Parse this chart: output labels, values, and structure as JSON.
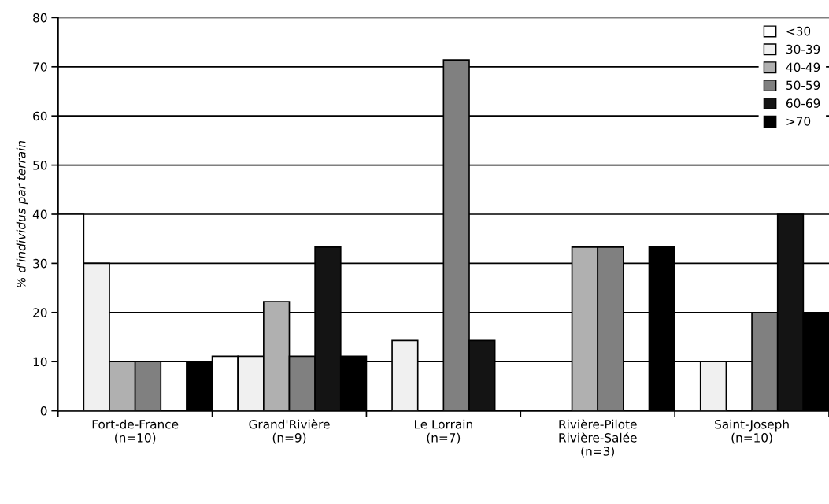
{
  "chart_data": {
    "type": "bar",
    "ylabel": "% d'individus par terrain",
    "categories": [
      "Fort-de-France\n(n=10)",
      "Grand'Rivière\n(n=9)",
      "Le Lorrain\n(n=7)",
      "Rivière-Pilote\nRivière-Salée\n(n=3)",
      "Saint-Joseph\n(n=10)"
    ],
    "series": [
      {
        "name": "<30",
        "color": "#ffffff",
        "values": [
          40,
          11.1,
          0,
          0,
          10
        ]
      },
      {
        "name": "30-39",
        "color": "#f0f0f0",
        "values": [
          30,
          11.1,
          14.3,
          0,
          10
        ]
      },
      {
        "name": "40-49",
        "color": "#b0b0b0",
        "values": [
          10,
          22.2,
          0,
          33.3,
          0
        ]
      },
      {
        "name": "50-59",
        "color": "#808080",
        "values": [
          10,
          11.1,
          71.4,
          33.3,
          20
        ]
      },
      {
        "name": "60-69",
        "color": "#141414",
        "values": [
          0,
          33.3,
          14.3,
          0,
          40
        ]
      },
      {
        "name": ">70",
        "color": "#000000",
        "values": [
          10,
          11.1,
          0,
          33.3,
          20
        ]
      }
    ],
    "ylim": [
      0,
      80
    ],
    "yticks": [
      0,
      10,
      20,
      30,
      40,
      50,
      60,
      70,
      80
    ],
    "grid": "y",
    "legend": "top right"
  }
}
